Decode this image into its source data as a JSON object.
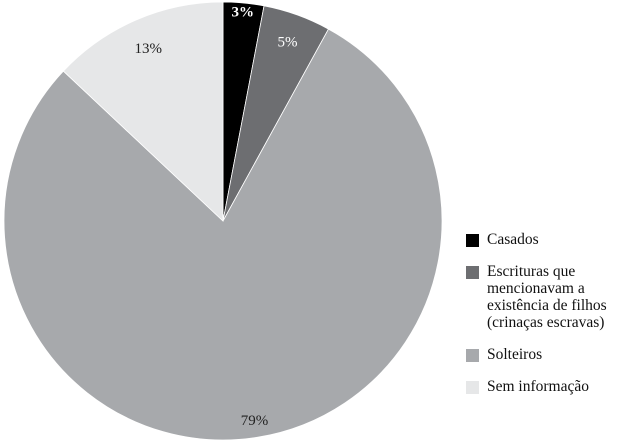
{
  "chart_data": {
    "type": "pie",
    "slices": [
      {
        "label": "Casados",
        "value": 3,
        "display": "3%",
        "color": "#000000",
        "label_color": "#ffffff"
      },
      {
        "label": "Escrituras que mencionavam a existência de filhos (crinaças escravas)",
        "value": 5,
        "display": "5%",
        "color": "#6d6e71",
        "label_color": "#ffffff"
      },
      {
        "label": "Solteiros",
        "value": 79,
        "display": "79%",
        "color": "#a7a9ac",
        "label_color": "#222222"
      },
      {
        "label": "Sem informação",
        "value": 13,
        "display": "13%",
        "color": "#e6e7e8",
        "label_color": "#222222"
      }
    ],
    "start_angle": "12 o'clock",
    "direction": "clockwise",
    "legend_position": "right"
  }
}
